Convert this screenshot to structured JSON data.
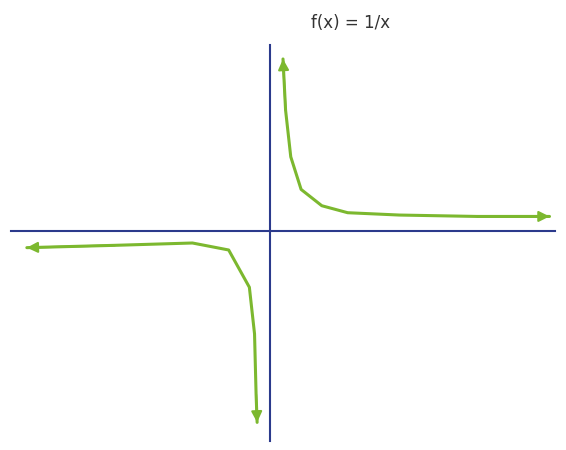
{
  "chart_data": {
    "type": "line",
    "title": "f(x) = 1/x",
    "series": [
      {
        "color": "#7cb82f",
        "x": [
          0.25,
          0.3,
          0.4,
          0.6,
          1.0,
          1.5,
          2.5,
          4.0,
          5.4
        ],
        "values": [
          3.7,
          2.6,
          1.6,
          0.9,
          0.55,
          0.4,
          0.35,
          0.32,
          0.32
        ]
      },
      {
        "color": "#7cb82f",
        "x": [
          -4.7,
          -3.0,
          -1.5,
          -0.8,
          -0.4,
          -0.3,
          -0.27,
          -0.25
        ],
        "values": [
          -0.35,
          -0.3,
          -0.25,
          -0.4,
          -1.2,
          -2.2,
          -3.5,
          -4.1
        ]
      }
    ],
    "axis_color": "#2b3a8c",
    "xlim": [
      -5,
      5.5
    ],
    "ylim": [
      -4.5,
      4
    ],
    "xticks": [],
    "yticks": [],
    "tick_labels": false,
    "grid": false
  }
}
